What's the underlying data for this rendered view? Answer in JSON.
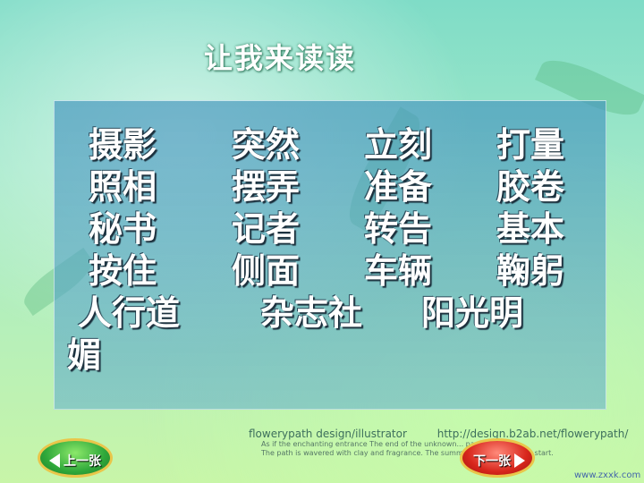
{
  "title": "让我来读读",
  "words": {
    "row1": [
      "摄影",
      "突然",
      "立刻",
      "打量"
    ],
    "row2": [
      "照相",
      "摆弄",
      "准备",
      "胶卷"
    ],
    "row3": [
      "秘书",
      "记者",
      "转告",
      "基本"
    ],
    "row4": [
      "按住",
      "侧面",
      "车辆",
      "鞠躬"
    ],
    "row5": [
      "人行道",
      "杂志社",
      "阳光明"
    ],
    "row6": [
      "媚"
    ]
  },
  "background": {
    "brand": "flowerypath design/illustrator",
    "url": "http://design.b2ab.net/flowerypath/",
    "line1": "As if the enchanting entrance The end of the unknown... page.",
    "line2": "The path is wavered with clay and fragrance. The summer exp... is going to start.",
    "watermark": "www.zxxk.com"
  },
  "nav": {
    "prev_label": "上一张",
    "next_label": "下一张"
  },
  "colors": {
    "panel": "#5a9fc4",
    "text": "#ffffff",
    "prev_button": "#2fa83a",
    "next_button": "#d8261c",
    "button_border": "#e9c64a"
  }
}
